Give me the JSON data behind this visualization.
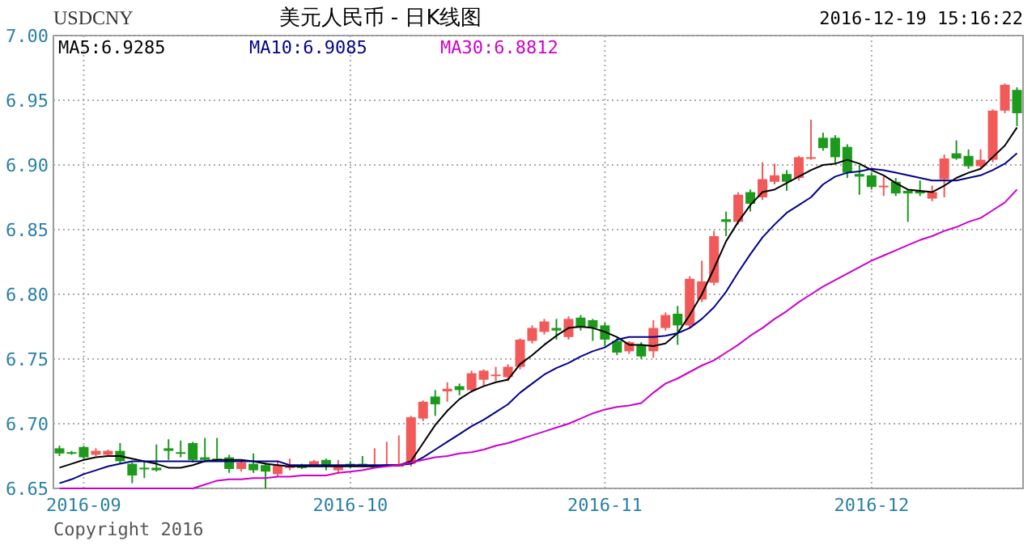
{
  "chart_data": {
    "type": "candlestick",
    "title": "美元人民币 - 日K线图",
    "subtitle": "USDCNY",
    "annotations": [
      "2016-12-19 15:16:22",
      "Copyright 2016"
    ],
    "categories": [
      null,
      null,
      "2016-09",
      null,
      null,
      null,
      null,
      null,
      null,
      null,
      null,
      null,
      null,
      null,
      null,
      null,
      null,
      null,
      null,
      null,
      null,
      null,
      null,
      null,
      "2016-10",
      null,
      null,
      null,
      null,
      null,
      null,
      null,
      null,
      null,
      null,
      null,
      null,
      null,
      null,
      null,
      null,
      null,
      null,
      null,
      null,
      "2016-11",
      null,
      null,
      null,
      null,
      null,
      null,
      null,
      null,
      null,
      null,
      null,
      null,
      null,
      null,
      null,
      null,
      null,
      null,
      null,
      null,
      null,
      "2016-12",
      null,
      null,
      null,
      null,
      null,
      null,
      null,
      null,
      null,
      null,
      null,
      null
    ],
    "ohlc": [
      [
        6.681,
        6.683,
        6.675,
        6.677
      ],
      [
        6.678,
        6.679,
        6.676,
        6.677
      ],
      [
        6.682,
        6.683,
        6.673,
        6.674
      ],
      [
        6.676,
        6.681,
        6.675,
        6.679
      ],
      [
        6.676,
        6.68,
        6.675,
        6.679
      ],
      [
        6.679,
        6.685,
        6.669,
        6.671
      ],
      [
        6.669,
        6.67,
        6.654,
        6.66
      ],
      [
        6.666,
        6.671,
        6.658,
        6.665
      ],
      [
        6.666,
        6.684,
        6.663,
        6.664
      ],
      [
        6.681,
        6.688,
        6.672,
        6.679
      ],
      [
        6.678,
        6.687,
        6.674,
        6.677
      ],
      [
        6.685,
        6.686,
        6.67,
        6.672
      ],
      [
        6.674,
        6.689,
        6.671,
        6.672
      ],
      [
        6.673,
        6.689,
        6.671,
        6.672
      ],
      [
        6.674,
        6.676,
        6.662,
        6.665
      ],
      [
        6.665,
        6.672,
        6.663,
        6.67
      ],
      [
        6.669,
        6.677,
        6.662,
        6.664
      ],
      [
        6.668,
        6.67,
        6.65,
        6.663
      ],
      [
        6.661,
        6.671,
        6.659,
        6.668
      ],
      [
        6.666,
        6.673,
        6.664,
        6.667
      ],
      [
        6.667,
        6.669,
        6.665,
        6.666
      ],
      [
        6.668,
        6.672,
        6.667,
        6.671
      ],
      [
        6.672,
        6.673,
        6.664,
        6.667
      ],
      [
        6.664,
        6.672,
        6.662,
        6.668
      ],
      [
        6.669,
        6.671,
        6.666,
        6.668
      ],
      [
        6.669,
        6.675,
        6.667,
        6.668
      ],
      [
        6.668,
        6.681,
        6.667,
        6.668
      ],
      [
        6.668,
        6.686,
        6.667,
        6.668
      ],
      [
        6.668,
        6.691,
        6.667,
        6.668
      ],
      [
        6.669,
        6.706,
        6.667,
        6.705
      ],
      [
        6.704,
        6.718,
        6.702,
        6.717
      ],
      [
        6.721,
        6.726,
        6.706,
        6.715
      ],
      [
        6.725,
        6.732,
        6.717,
        6.727
      ],
      [
        6.729,
        6.731,
        6.722,
        6.726
      ],
      [
        6.726,
        6.741,
        6.724,
        6.739
      ],
      [
        6.734,
        6.742,
        6.729,
        6.741
      ],
      [
        6.737,
        6.744,
        6.733,
        6.738
      ],
      [
        6.736,
        6.746,
        6.733,
        6.744
      ],
      [
        6.744,
        6.766,
        6.742,
        6.765
      ],
      [
        6.764,
        6.776,
        6.762,
        6.774
      ],
      [
        6.771,
        6.781,
        6.769,
        6.779
      ],
      [
        6.774,
        6.781,
        6.765,
        6.772
      ],
      [
        6.767,
        6.783,
        6.765,
        6.781
      ],
      [
        6.782,
        6.784,
        6.772,
        6.775
      ],
      [
        6.78,
        6.781,
        6.764,
        6.774
      ],
      [
        6.776,
        6.778,
        6.76,
        6.765
      ],
      [
        6.764,
        6.766,
        6.753,
        6.755
      ],
      [
        6.756,
        6.764,
        6.754,
        6.763
      ],
      [
        6.761,
        6.763,
        6.75,
        6.752
      ],
      [
        6.756,
        6.78,
        6.751,
        6.774
      ],
      [
        6.774,
        6.786,
        6.772,
        6.784
      ],
      [
        6.785,
        6.791,
        6.761,
        6.776
      ],
      [
        6.776,
        6.814,
        6.774,
        6.812
      ],
      [
        6.796,
        6.826,
        6.794,
        6.81
      ],
      [
        6.809,
        6.849,
        6.807,
        6.845
      ],
      [
        6.858,
        6.864,
        6.845,
        6.856
      ],
      [
        6.856,
        6.879,
        6.854,
        6.877
      ],
      [
        6.879,
        6.881,
        6.864,
        6.87
      ],
      [
        6.875,
        6.902,
        6.873,
        6.889
      ],
      [
        6.887,
        6.901,
        6.885,
        6.892
      ],
      [
        6.893,
        6.896,
        6.88,
        6.887
      ],
      [
        6.89,
        6.907,
        6.888,
        6.906
      ],
      [
        6.905,
        6.935,
        6.904,
        6.906
      ],
      [
        6.921,
        6.925,
        6.911,
        6.913
      ],
      [
        6.921,
        6.923,
        6.901,
        6.906
      ],
      [
        6.914,
        6.916,
        6.89,
        6.894
      ],
      [
        6.893,
        6.9,
        6.877,
        6.891
      ],
      [
        6.892,
        6.894,
        6.881,
        6.883
      ],
      [
        6.883,
        6.891,
        6.876,
        6.884
      ],
      [
        6.887,
        6.89,
        6.876,
        6.878
      ],
      [
        6.88,
        6.881,
        6.856,
        6.878
      ],
      [
        6.88,
        6.888,
        6.876,
        6.878
      ],
      [
        6.874,
        6.884,
        6.872,
        6.879
      ],
      [
        6.889,
        6.908,
        6.875,
        6.905
      ],
      [
        6.909,
        6.919,
        6.904,
        6.905
      ],
      [
        6.907,
        6.912,
        6.897,
        6.899
      ],
      [
        6.899,
        6.912,
        6.897,
        6.904
      ],
      [
        6.904,
        6.943,
        6.902,
        6.942
      ],
      [
        6.942,
        6.963,
        6.94,
        6.962
      ],
      [
        6.958,
        6.96,
        6.93,
        6.94
      ]
    ],
    "series": [
      {
        "name": "MA5:6.9285",
        "type": "line",
        "color": "#000000",
        "values": [
          6.666,
          6.669,
          6.672,
          6.674,
          6.675,
          6.675,
          6.673,
          6.671,
          6.669,
          6.666,
          6.666,
          6.668,
          6.671,
          6.672,
          6.672,
          6.672,
          6.671,
          6.669,
          6.668,
          6.667,
          6.667,
          6.667,
          6.667,
          6.667,
          6.667,
          6.667,
          6.667,
          6.668,
          6.668,
          6.671,
          6.685,
          6.699,
          6.71,
          6.719,
          6.725,
          6.729,
          6.732,
          6.734,
          6.746,
          6.753,
          6.761,
          6.768,
          6.774,
          6.775,
          6.774,
          6.771,
          6.767,
          6.761,
          6.761,
          6.76,
          6.762,
          6.77,
          6.784,
          6.8,
          6.82,
          6.841,
          6.856,
          6.869,
          6.879,
          6.881,
          6.886,
          6.891,
          6.896,
          6.9,
          6.901,
          6.904,
          6.901,
          6.896,
          6.892,
          6.886,
          6.881,
          6.88,
          6.879,
          6.884,
          6.89,
          6.894,
          6.897,
          6.906,
          6.915,
          6.929
        ]
      },
      {
        "name": "MA10:6.9085",
        "type": "line",
        "color": "#00008b",
        "values": [
          6.654,
          6.657,
          6.661,
          6.664,
          6.667,
          6.669,
          6.671,
          6.671,
          6.671,
          6.671,
          6.671,
          6.671,
          6.671,
          6.671,
          6.671,
          6.671,
          6.671,
          6.671,
          6.671,
          6.668,
          6.668,
          6.668,
          6.668,
          6.668,
          6.668,
          6.668,
          6.668,
          6.668,
          6.668,
          6.669,
          6.674,
          6.68,
          6.686,
          6.692,
          6.698,
          6.703,
          6.709,
          6.715,
          6.724,
          6.731,
          6.738,
          6.743,
          6.747,
          6.752,
          6.756,
          6.759,
          6.765,
          6.767,
          6.767,
          6.767,
          6.768,
          6.77,
          6.774,
          6.781,
          6.79,
          6.802,
          6.817,
          6.831,
          6.844,
          6.854,
          6.863,
          6.869,
          6.875,
          6.885,
          6.891,
          6.894,
          6.895,
          6.897,
          6.896,
          6.894,
          6.892,
          6.89,
          6.888,
          6.888,
          6.888,
          6.89,
          6.892,
          6.896,
          6.901,
          6.909
        ]
      },
      {
        "name": "MA30:6.8812",
        "type": "line",
        "color": "#cc00cc",
        "values": [
          6.65,
          6.65,
          6.65,
          6.65,
          6.65,
          6.65,
          6.65,
          6.65,
          6.65,
          6.65,
          6.65,
          6.65,
          6.653,
          6.656,
          6.657,
          6.657,
          6.658,
          6.658,
          6.659,
          6.659,
          6.66,
          6.66,
          6.66,
          6.662,
          6.663,
          6.664,
          6.666,
          6.667,
          6.668,
          6.67,
          6.672,
          6.674,
          6.675,
          6.677,
          6.678,
          6.68,
          6.683,
          6.685,
          6.688,
          6.691,
          6.694,
          6.697,
          6.7,
          6.704,
          6.708,
          6.711,
          6.713,
          6.714,
          6.716,
          6.724,
          6.731,
          6.735,
          6.74,
          6.745,
          6.749,
          6.755,
          6.761,
          6.768,
          6.774,
          6.781,
          6.787,
          6.794,
          6.8,
          6.806,
          6.811,
          6.816,
          6.821,
          6.826,
          6.83,
          6.834,
          6.838,
          6.842,
          6.845,
          6.849,
          6.852,
          6.856,
          6.859,
          6.865,
          6.871,
          6.881
        ]
      }
    ],
    "ylim": [
      6.65,
      7.0
    ],
    "yticks": [
      {
        "value": 6.65,
        "label": "6.65"
      },
      {
        "value": 6.7,
        "label": "6.70"
      },
      {
        "value": 6.75,
        "label": "6.75"
      },
      {
        "value": 6.8,
        "label": "6.80"
      },
      {
        "value": 6.85,
        "label": "6.85"
      },
      {
        "value": 6.9,
        "label": "6.90"
      },
      {
        "value": 6.95,
        "label": "6.95"
      },
      {
        "value": 7.0,
        "label": "7.00"
      }
    ],
    "grid": true,
    "legend": "top left"
  }
}
